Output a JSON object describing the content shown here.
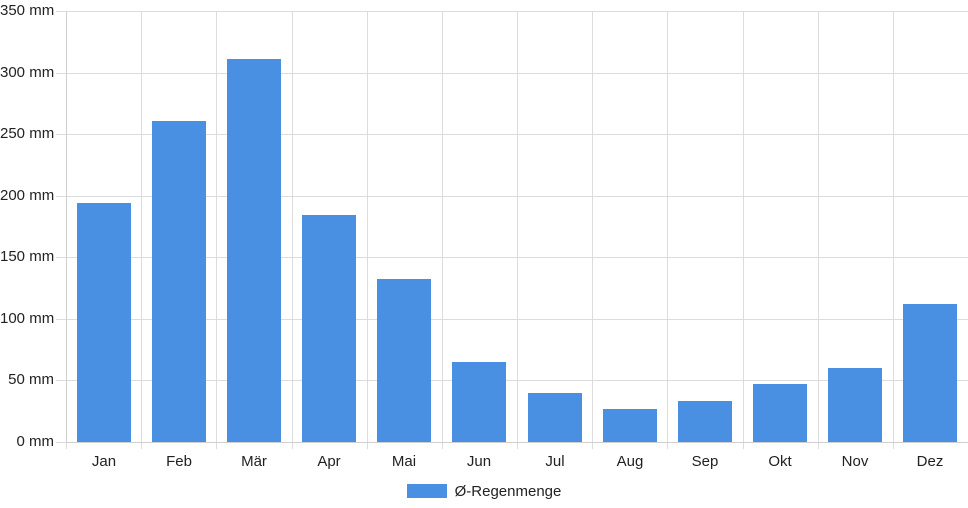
{
  "chart_data": {
    "type": "bar",
    "categories": [
      "Jan",
      "Feb",
      "Mär",
      "Apr",
      "Mai",
      "Jun",
      "Jul",
      "Aug",
      "Sep",
      "Okt",
      "Nov",
      "Dez"
    ],
    "series": [
      {
        "name": "Ø-Regenmenge",
        "color": "#4a90e2",
        "values": [
          194,
          261,
          311,
          184,
          132,
          65,
          40,
          27,
          33,
          47,
          60,
          112
        ]
      }
    ],
    "unit": "mm",
    "ylim": [
      0,
      350
    ],
    "ytick_step": 50,
    "ytick_labels": [
      "0 mm",
      "50 mm",
      "100 mm",
      "150 mm",
      "200 mm",
      "250 mm",
      "300 mm",
      "350 mm"
    ],
    "grid": true,
    "legend_position": "bottom"
  },
  "colors": {
    "bar": "#4a90e2",
    "gridline": "#dcdcdc",
    "text": "#222222",
    "background": "#ffffff"
  }
}
